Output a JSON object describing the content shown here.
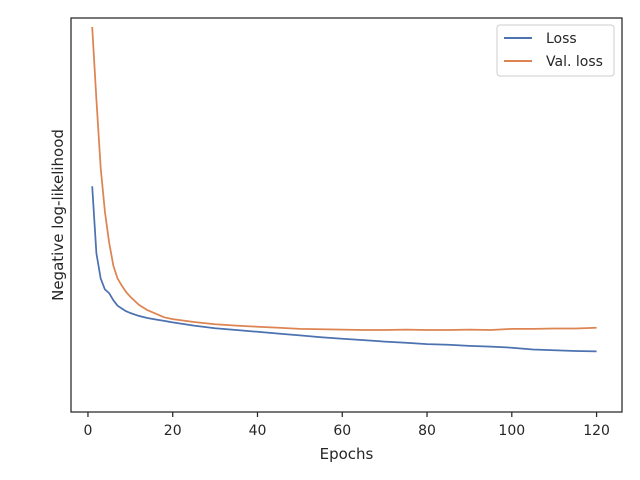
{
  "chart_data": {
    "type": "line",
    "title": "",
    "xlabel": "Epochs",
    "ylabel": "Negative log-likelihood",
    "xlim": [
      -4,
      126
    ],
    "ylim": [
      0,
      100
    ],
    "xticks": [
      0,
      20,
      40,
      60,
      80,
      100,
      120
    ],
    "yticks_labeled": false,
    "grid": false,
    "legend_position": "top-right",
    "series": [
      {
        "name": "Loss",
        "color": "#4c72b0",
        "x": [
          1,
          2,
          3,
          4,
          5,
          6,
          7,
          8,
          9,
          10,
          12,
          14,
          16,
          18,
          20,
          25,
          30,
          35,
          40,
          45,
          50,
          55,
          60,
          65,
          70,
          75,
          80,
          85,
          90,
          95,
          100,
          105,
          110,
          115,
          120
        ],
        "y": [
          56,
          37.5,
          30.5,
          27.5,
          26.5,
          24.5,
          23,
          22.2,
          21.5,
          21,
          20.2,
          19.6,
          19.2,
          18.8,
          18.4,
          17.5,
          16.8,
          16.3,
          15.8,
          15.3,
          14.8,
          14.3,
          13.9,
          13.5,
          13.1,
          12.8,
          12.4,
          12.2,
          11.9,
          11.7,
          11.4,
          10.9,
          10.7,
          10.5,
          10.4
        ]
      },
      {
        "name": "Val. loss",
        "color": "#dd8452",
        "x": [
          1,
          2,
          3,
          4,
          5,
          6,
          7,
          8,
          9,
          10,
          12,
          14,
          16,
          18,
          20,
          25,
          30,
          35,
          40,
          45,
          50,
          55,
          60,
          65,
          70,
          75,
          80,
          85,
          90,
          95,
          100,
          105,
          110,
          115,
          120
        ],
        "y": [
          100,
          80,
          61,
          49,
          40.5,
          34,
          30.5,
          28.5,
          26.8,
          25.5,
          23.3,
          21.8,
          20.8,
          19.8,
          19.3,
          18.5,
          17.9,
          17.5,
          17.2,
          16.9,
          16.6,
          16.5,
          16.4,
          16.3,
          16.3,
          16.4,
          16.3,
          16.3,
          16.4,
          16.3,
          16.6,
          16.6,
          16.7,
          16.7,
          16.9
        ]
      }
    ]
  }
}
